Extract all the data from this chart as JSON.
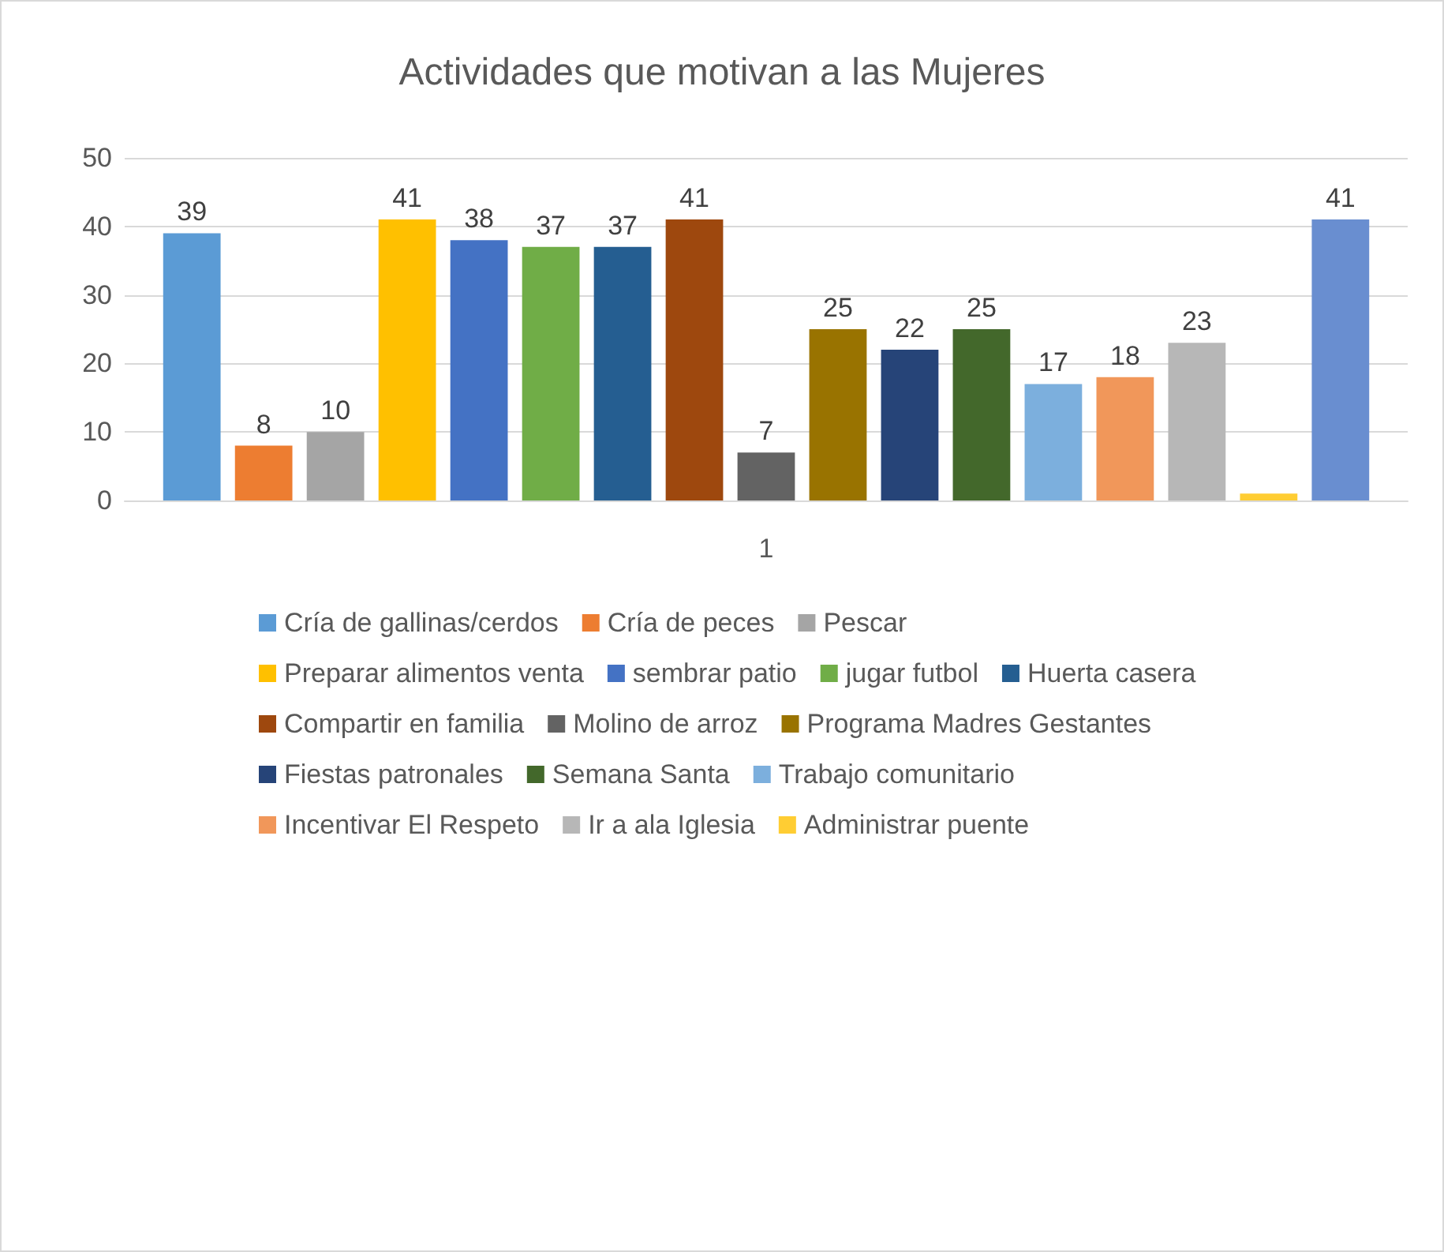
{
  "chart_data": {
    "type": "bar",
    "title": "Actividades que motivan a las Mujeres",
    "categories": [
      "1"
    ],
    "ylim": [
      0,
      50
    ],
    "yticks": [
      0,
      10,
      20,
      30,
      40,
      50
    ],
    "grid": "y",
    "legend": "bottom",
    "series": [
      {
        "name": "Cría de gallinas/cerdos",
        "color": "#5b9bd5",
        "values": [
          39
        ],
        "value_labels": [
          "39"
        ]
      },
      {
        "name": "Cría de peces",
        "color": "#ed7d31",
        "values": [
          8
        ],
        "value_labels": [
          "8"
        ]
      },
      {
        "name": "Pescar",
        "color": "#a5a5a5",
        "values": [
          10
        ],
        "value_labels": [
          "10"
        ]
      },
      {
        "name": "Preparar alimentos venta",
        "color": "#ffc000",
        "values": [
          41
        ],
        "value_labels": [
          "41"
        ]
      },
      {
        "name": "sembrar patio",
        "color": "#4472c4",
        "values": [
          38
        ],
        "value_labels": [
          "38"
        ]
      },
      {
        "name": "jugar futbol",
        "color": "#70ad47",
        "values": [
          37
        ],
        "value_labels": [
          "37"
        ]
      },
      {
        "name": "Huerta casera",
        "color": "#255e91",
        "values": [
          37
        ],
        "value_labels": [
          "37"
        ]
      },
      {
        "name": "Compartir en familia",
        "color": "#9e480e",
        "values": [
          41
        ],
        "value_labels": [
          "41"
        ]
      },
      {
        "name": "Molino de arroz",
        "color": "#636363",
        "values": [
          7
        ],
        "value_labels": [
          "7"
        ]
      },
      {
        "name": "Programa Madres Gestantes",
        "color": "#997300",
        "values": [
          25
        ],
        "value_labels": [
          "25"
        ]
      },
      {
        "name": "Fiestas patronales",
        "color": "#264478",
        "values": [
          22
        ],
        "value_labels": [
          "22"
        ]
      },
      {
        "name": "Semana Santa",
        "color": "#43682b",
        "values": [
          25
        ],
        "value_labels": [
          "25"
        ]
      },
      {
        "name": "Trabajo comunitario",
        "color": "#7cafdd",
        "values": [
          17
        ],
        "value_labels": [
          "17"
        ]
      },
      {
        "name": "Incentivar El Respeto",
        "color": "#f1975a",
        "values": [
          18
        ],
        "value_labels": [
          "18"
        ]
      },
      {
        "name": "Ir a ala Iglesia",
        "color": "#b7b7b7",
        "values": [
          23
        ],
        "value_labels": [
          "23"
        ]
      },
      {
        "name": "Administrar puente",
        "color": "#ffcd33",
        "values": [
          1
        ],
        "value_labels": [
          null
        ]
      },
      {
        "color": "#698ed0",
        "values": [
          41
        ],
        "value_labels": [
          "41"
        ]
      }
    ]
  }
}
